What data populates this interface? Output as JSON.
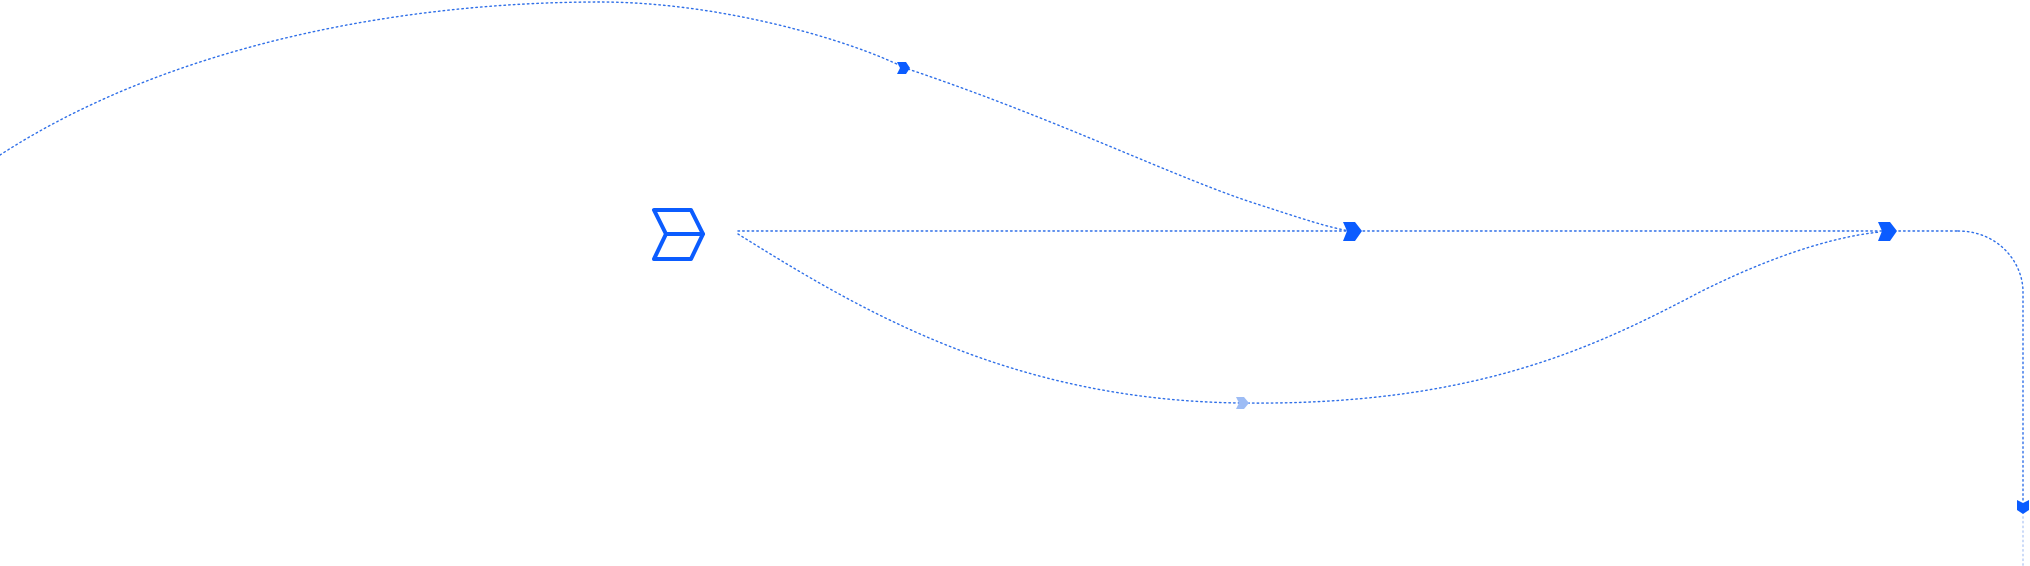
{
  "colors": {
    "accent": "#0b5cff",
    "path": "#2f6fe8",
    "path_faint": "#a9c2f3",
    "marker_faint": "#9dbcf5",
    "background": "#ffffff"
  },
  "logo": {
    "icon": "chevron-stack-logo-icon"
  },
  "paths": [
    {
      "id": "top-arc",
      "style": "dotted"
    },
    {
      "id": "main-line",
      "style": "dotted"
    },
    {
      "id": "bottom-arc",
      "style": "dotted"
    },
    {
      "id": "corner-turn",
      "style": "dotted"
    },
    {
      "id": "down-tail",
      "style": "dotted-faint"
    }
  ],
  "markers": [
    {
      "id": "top-arc",
      "icon": "chevron-right-icon"
    },
    {
      "id": "merge-1",
      "icon": "chevron-right-icon"
    },
    {
      "id": "merge-2",
      "icon": "chevron-right-icon"
    },
    {
      "id": "bottom-arc",
      "icon": "chevron-right-icon",
      "state": "faded"
    },
    {
      "id": "down",
      "icon": "chevron-down-icon"
    }
  ]
}
